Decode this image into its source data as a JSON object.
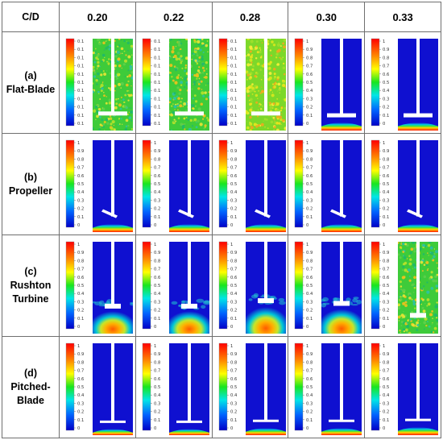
{
  "table": {
    "corner": "C/D",
    "columns": [
      "0.20",
      "0.22",
      "0.28",
      "0.30",
      "0.33"
    ],
    "rows": [
      {
        "label_lines": [
          "(a)",
          "Flat-Blade"
        ],
        "impeller": "flat"
      },
      {
        "label_lines": [
          "(b)",
          "Propeller"
        ],
        "impeller": "propeller"
      },
      {
        "label_lines": [
          "(c)",
          "Rushton",
          "Turbine"
        ],
        "impeller": "rushton"
      },
      {
        "label_lines": [
          "(d)",
          "Pitched-",
          "Blade"
        ],
        "impeller": "pitched"
      }
    ]
  },
  "colorbar": {
    "ticks_full": [
      "1",
      "0.9",
      "0.8",
      "0.7",
      "0.6",
      "0.5",
      "0.4",
      "0.3",
      "0.2",
      "0.1",
      "0"
    ],
    "ticks_flat": [
      "0.1",
      "0.1",
      "0.1",
      "0.1",
      "0.1",
      "0.1",
      "0.1",
      "0.1",
      "0.1",
      "0.1",
      "0.1"
    ]
  },
  "cells": [
    [
      {
        "pattern": "noise",
        "bar": "flat"
      },
      {
        "pattern": "noise",
        "bar": "flat"
      },
      {
        "pattern": "noise-yellow",
        "bar": "flat"
      },
      {
        "pattern": "settled",
        "bar": "full",
        "bed": 0.1
      },
      {
        "pattern": "settled",
        "bar": "full",
        "bed": 0.1
      }
    ],
    [
      {
        "pattern": "settled",
        "bar": "full",
        "bed": 0.1
      },
      {
        "pattern": "settled",
        "bar": "full",
        "bed": 0.1
      },
      {
        "pattern": "settled",
        "bar": "full",
        "bed": 0.1
      },
      {
        "pattern": "settled",
        "bar": "full",
        "bed": 0.1
      },
      {
        "pattern": "settled",
        "bar": "full",
        "bed": 0.1
      }
    ],
    [
      {
        "pattern": "cloud",
        "bar": "full",
        "bed": 0.22
      },
      {
        "pattern": "cloud",
        "bar": "full",
        "bed": 0.22
      },
      {
        "pattern": "cloud",
        "bar": "full",
        "bed": 0.28
      },
      {
        "pattern": "cloud",
        "bar": "full",
        "bed": 0.25
      },
      {
        "pattern": "noise",
        "bar": "full"
      }
    ],
    [
      {
        "pattern": "settled",
        "bar": "full",
        "bed": 0.08
      },
      {
        "pattern": "settled",
        "bar": "full",
        "bed": 0.08
      },
      {
        "pattern": "settled",
        "bar": "full",
        "bed": 0.09
      },
      {
        "pattern": "settled",
        "bar": "full",
        "bed": 0.09
      },
      {
        "pattern": "settled",
        "bar": "full",
        "bed": 0.1
      }
    ]
  ],
  "colors": {
    "blue": "#0f10d0",
    "grid": "#6f6f6f"
  }
}
